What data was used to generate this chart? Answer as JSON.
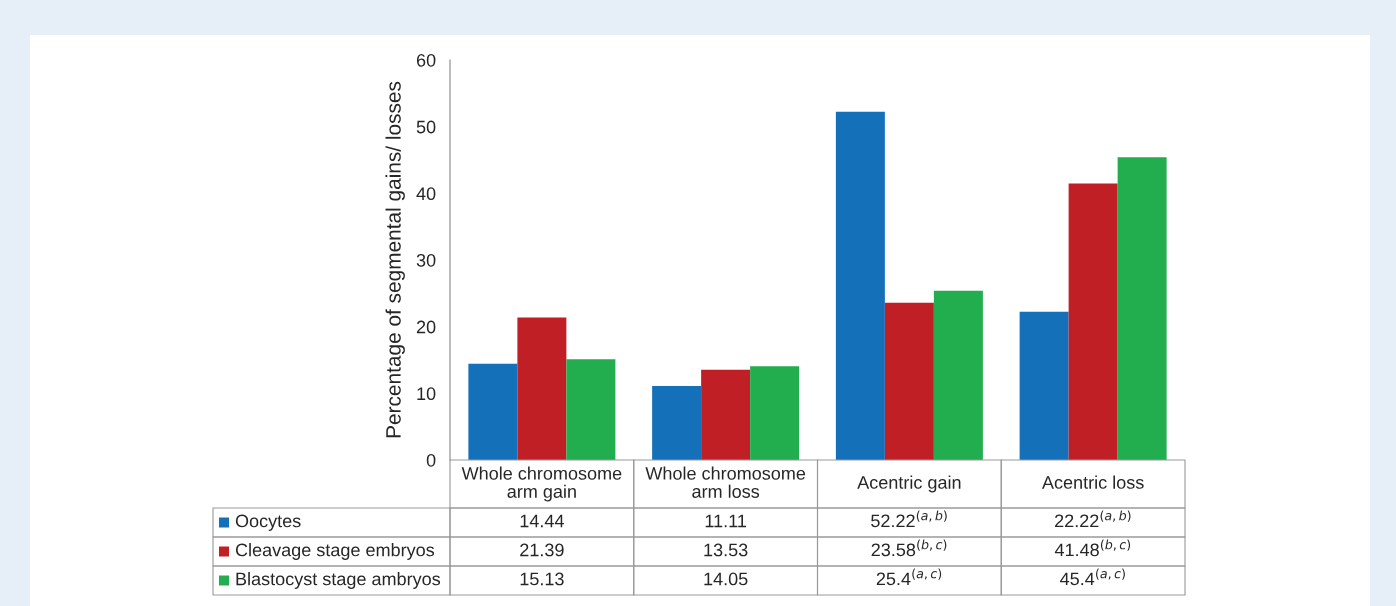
{
  "chart_data": {
    "type": "bar",
    "ylabel": "Percentage of segmental gains/ losses",
    "categories": [
      "Whole chromosome arm gain",
      "Whole chromosome arm loss",
      "Acentric gain",
      "Acentric loss"
    ],
    "series": [
      {
        "name": "Oocytes",
        "color": "#1570ba",
        "values": [
          14.44,
          11.11,
          52.22,
          22.22
        ],
        "value_labels": [
          "14.44",
          "11.11",
          "52.22$^{(a,b)}$",
          "22.22$^{(a,b)}$"
        ]
      },
      {
        "name": "Cleavage stage embryos",
        "color": "#c01f26",
        "values": [
          21.39,
          13.53,
          23.58,
          41.48
        ],
        "value_labels": [
          "21.39",
          "13.53",
          "23.58$^{(b,c)}$",
          "41.48$^{(b,c)}$"
        ]
      },
      {
        "name": "Blastocyst stage ambryos",
        "color": "#22ad4e",
        "values": [
          15.13,
          14.05,
          25.4,
          45.4
        ],
        "value_labels": [
          "15.13",
          "14.05",
          "25.4$^{(a,c)}$",
          "45.4$^{(a,c)}$"
        ]
      }
    ],
    "ylim": [
      0,
      60
    ],
    "yticks": [
      0,
      10,
      20,
      30,
      40,
      50,
      60
    ],
    "grid": false,
    "legend": "bottom"
  }
}
